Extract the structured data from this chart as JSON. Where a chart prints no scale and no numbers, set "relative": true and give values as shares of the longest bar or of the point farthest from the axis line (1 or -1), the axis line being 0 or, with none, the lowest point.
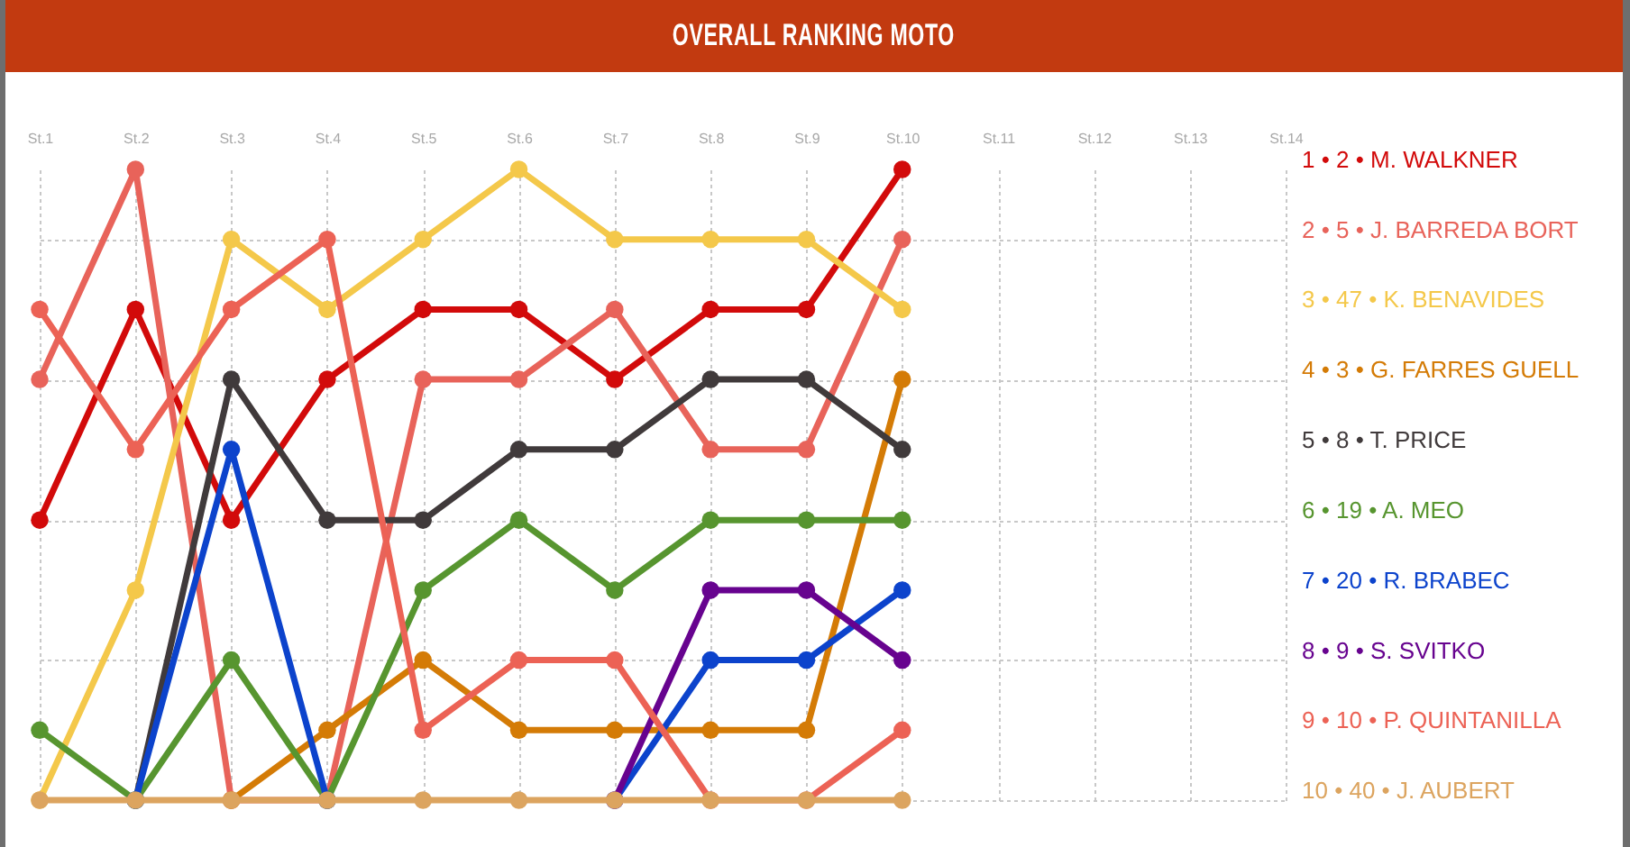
{
  "chart_data": {
    "type": "line",
    "title": "OVERALL RANKING MOTO",
    "categories": [
      "St.1",
      "St.2",
      "St.3",
      "St.4",
      "St.5",
      "St.6",
      "St.7",
      "St.8",
      "St.9",
      "St.10",
      "St.11",
      "St.12",
      "St.13",
      "St.14"
    ],
    "relative": true,
    "grid": true,
    "marker": "circle",
    "line_style": "solid",
    "series": [
      {
        "name": "1 • 2 • M. WALKNER",
        "color": "#d20a0a",
        "values": [
          0.444,
          0.778,
          0.444,
          0.667,
          0.778,
          0.778,
          0.667,
          0.778,
          0.778,
          1,
          null,
          null,
          null,
          null
        ]
      },
      {
        "name": "2 • 5 • J. BARREDA BORT",
        "color": "#e8635a",
        "values": [
          0.667,
          1,
          0,
          0,
          0.667,
          0.667,
          0.778,
          0.556,
          0.556,
          0.889,
          null,
          null,
          null,
          null
        ]
      },
      {
        "name": "3 • 47 • K. BENAVIDES",
        "color": "#f4c84a",
        "values": [
          0,
          0.333,
          0.889,
          0.778,
          0.889,
          1,
          0.889,
          0.889,
          0.889,
          0.778,
          null,
          null,
          null,
          null
        ]
      },
      {
        "name": "4 • 3 • G. FARRES GUELL",
        "color": "#d47b06",
        "values": [
          null,
          null,
          0,
          0.111,
          0.222,
          0.111,
          0.111,
          0.111,
          0.111,
          0.667,
          null,
          null,
          null,
          null
        ]
      },
      {
        "name": "5 • 8 • T. PRICE",
        "color": "#403a3b",
        "values": [
          null,
          0,
          0.667,
          0.444,
          0.444,
          0.556,
          0.556,
          0.667,
          0.667,
          0.556,
          null,
          null,
          null,
          null
        ]
      },
      {
        "name": "6 • 19 • A. MEO",
        "color": "#57952f",
        "values": [
          0.111,
          0,
          0.222,
          0,
          0.333,
          0.444,
          0.333,
          0.444,
          0.444,
          0.444,
          null,
          null,
          null,
          null
        ]
      },
      {
        "name": "7 • 20 • R. BRABEC",
        "color": "#0c43cc",
        "values": [
          null,
          0,
          0.556,
          0,
          null,
          null,
          0,
          0.222,
          0.222,
          0.333,
          null,
          null,
          null,
          null
        ]
      },
      {
        "name": "8 • 9 • S. SVITKO",
        "color": "#67038f",
        "values": [
          null,
          null,
          null,
          null,
          null,
          null,
          0,
          0.333,
          0.333,
          0.222,
          null,
          null,
          null,
          null
        ]
      },
      {
        "name": "9 • 10 • P. QUINTANILLA",
        "color": "#ec6255",
        "values": [
          0.778,
          0.556,
          0.778,
          0.889,
          0.111,
          0.222,
          0.222,
          0,
          0,
          0.111,
          null,
          null,
          null,
          null
        ]
      },
      {
        "name": "10 • 40 • J. AUBERT",
        "color": "#dca45f",
        "values": [
          0,
          0,
          0,
          0,
          0,
          0,
          0,
          0,
          0,
          0,
          null,
          null,
          null,
          null
        ]
      }
    ]
  }
}
